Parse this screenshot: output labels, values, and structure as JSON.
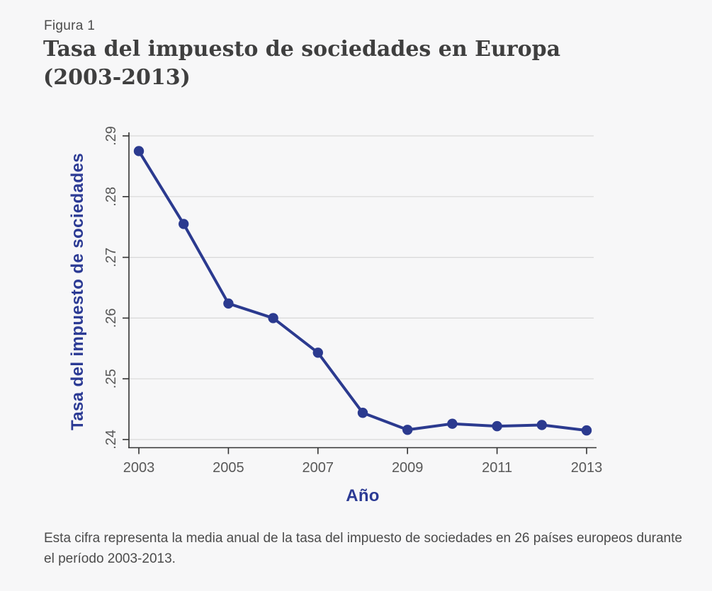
{
  "header": {
    "figure_label": "Figura 1",
    "title_line1": "Tasa del impuesto de sociedades en Europa",
    "title_line2": "(2003-2013)"
  },
  "chart_data": {
    "type": "line",
    "title": "Tasa del impuesto de sociedades en Europa (2003-2013)",
    "xlabel": "Año",
    "ylabel": "Tasa del impuesto de sociedades",
    "x": [
      2003,
      2004,
      2005,
      2006,
      2007,
      2008,
      2009,
      2010,
      2011,
      2012,
      2013
    ],
    "values": [
      0.2875,
      0.2755,
      0.2624,
      0.26,
      0.2543,
      0.2444,
      0.2416,
      0.2426,
      0.2422,
      0.2424,
      0.2415
    ],
    "series_name": "Media anual de la tasa del impuesto de sociedades",
    "xticks": [
      2003,
      2005,
      2007,
      2009,
      2011,
      2013
    ],
    "ytick_labels": [
      ".24",
      ".25",
      ".26",
      ".27",
      ".28",
      ".29"
    ],
    "ytick_values": [
      0.24,
      0.25,
      0.26,
      0.27,
      0.28,
      0.29
    ],
    "xlim": [
      2003,
      2013
    ],
    "ylim": [
      0.24,
      0.29
    ],
    "grid": "horizontal",
    "legend": "none",
    "marker": "circle"
  },
  "caption": "Esta cifra representa la media anual de la tasa del impuesto de sociedades en 26 países europeos durante el período 2003-2013.",
  "colors": {
    "background": "#f7f7f8",
    "line": "#2b3a8f",
    "marker": "#2b3a8f",
    "axis_title_blue": "#2b3a94",
    "title_gray": "#3f3f3f",
    "text_gray": "#4b4b4b",
    "tick_label_gray": "#585858",
    "gridline": "#d8d8d8",
    "axis_line": "#333333"
  }
}
